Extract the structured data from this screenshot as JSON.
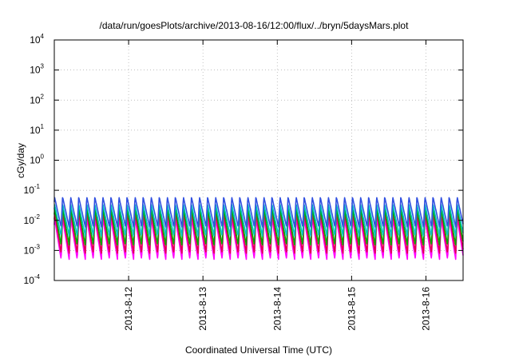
{
  "chart_data": {
    "type": "line",
    "title": "/data/run/goesPlots/archive/2013-08-16/12:00/flux/../bryn/5daysMars.plot",
    "xlabel": "Coordinated Universal Time (UTC)",
    "ylabel": "cGy/day",
    "x_ticks": [
      "2013-8-12",
      "2013-8-13",
      "2013-8-14",
      "2013-8-15",
      "2013-8-16"
    ],
    "y_ticks": [
      {
        "base": "10",
        "exp": "4"
      },
      {
        "base": "10",
        "exp": "3"
      },
      {
        "base": "10",
        "exp": "2"
      },
      {
        "base": "10",
        "exp": "1"
      },
      {
        "base": "10",
        "exp": "0"
      },
      {
        "base": "10",
        "exp": "-1"
      },
      {
        "base": "10",
        "exp": "-2"
      },
      {
        "base": "10",
        "exp": "-3"
      },
      {
        "base": "10",
        "exp": "-4"
      }
    ],
    "x_start": "2013-08-11T00:00",
    "x_end": "2013-08-16T12:00",
    "y_scale": "log",
    "ylim": [
      0.0001,
      10000
    ],
    "grid": true,
    "cycle_hours": 2.6,
    "series": [
      {
        "color": "#ff00ff",
        "peak": 0.012,
        "trough": 0.0005
      },
      {
        "color": "#e0004f",
        "peak": 0.018,
        "trough": 0.0008
      },
      {
        "color": "#00aa00",
        "peak": 0.025,
        "trough": 0.0015
      },
      {
        "color": "#00c0c0",
        "peak": 0.035,
        "trough": 0.003
      },
      {
        "color": "#3050e0",
        "peak": 0.06,
        "trough": 0.006
      }
    ]
  }
}
